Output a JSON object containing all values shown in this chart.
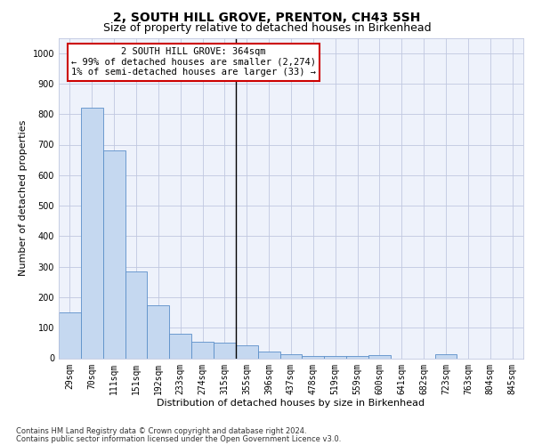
{
  "title_line1": "2, SOUTH HILL GROVE, PRENTON, CH43 5SH",
  "title_line2": "Size of property relative to detached houses in Birkenhead",
  "xlabel": "Distribution of detached houses by size in Birkenhead",
  "ylabel": "Number of detached properties",
  "categories": [
    "29sqm",
    "70sqm",
    "111sqm",
    "151sqm",
    "192sqm",
    "233sqm",
    "274sqm",
    "315sqm",
    "355sqm",
    "396sqm",
    "437sqm",
    "478sqm",
    "519sqm",
    "559sqm",
    "600sqm",
    "641sqm",
    "682sqm",
    "723sqm",
    "763sqm",
    "804sqm",
    "845sqm"
  ],
  "values": [
    150,
    820,
    680,
    283,
    175,
    80,
    55,
    50,
    42,
    22,
    14,
    8,
    8,
    8,
    10,
    0,
    0,
    12,
    0,
    0,
    0
  ],
  "bar_color": "#c5d8f0",
  "bar_edge_color": "#5b8fc9",
  "vline_x_index": 8,
  "vline_color": "#000000",
  "annotation_text": "2 SOUTH HILL GROVE: 364sqm\n← 99% of detached houses are smaller (2,274)\n1% of semi-detached houses are larger (33) →",
  "annotation_box_color": "#cc0000",
  "ylim": [
    0,
    1050
  ],
  "yticks": [
    0,
    100,
    200,
    300,
    400,
    500,
    600,
    700,
    800,
    900,
    1000
  ],
  "footer_line1": "Contains HM Land Registry data © Crown copyright and database right 2024.",
  "footer_line2": "Contains public sector information licensed under the Open Government Licence v3.0.",
  "bg_color": "#eef2fb",
  "grid_color": "#c0c8e0",
  "title_fontsize": 10,
  "subtitle_fontsize": 9,
  "axis_label_fontsize": 8,
  "tick_fontsize": 7,
  "annotation_fontsize": 7.5,
  "footer_fontsize": 6
}
